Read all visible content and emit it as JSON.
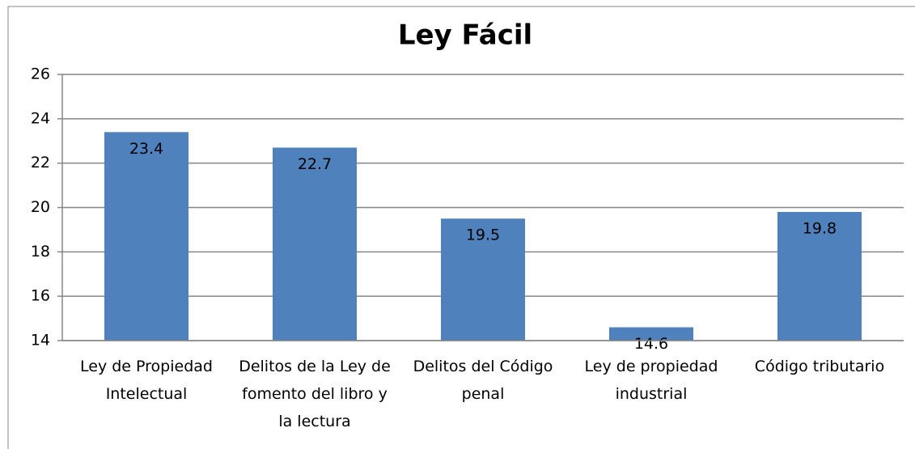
{
  "chart_data": {
    "type": "bar",
    "title": "Ley Fácil",
    "categories": [
      "Ley de Propiedad Intelectual",
      "Delitos de la Ley de fomento del libro y la lectura",
      "Delitos del Código penal",
      "Ley de propiedad industrial",
      "Código tributario"
    ],
    "values": [
      23.4,
      22.7,
      19.5,
      14.6,
      19.8
    ],
    "color": "#4f81bd",
    "ylim": [
      14,
      26
    ],
    "yticks": [
      14,
      16,
      18,
      20,
      22,
      24,
      26
    ],
    "grid": true
  }
}
